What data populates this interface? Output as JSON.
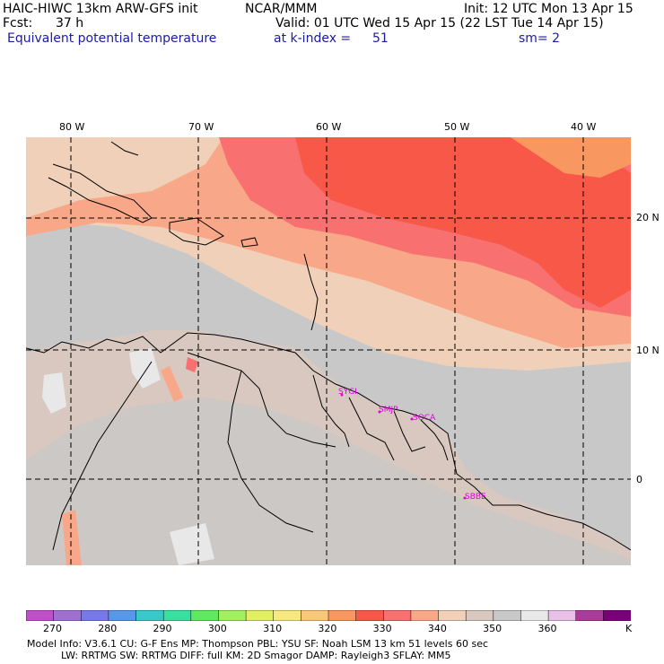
{
  "header": {
    "model": "HAIC-HIWC 13km ARW-GFS init",
    "org": "NCAR/MMM",
    "init": "Init: 12 UTC Mon 13 Apr 15",
    "fcst_label": "Fcst:",
    "fcst_value": "37 h",
    "valid": "Valid: 01 UTC Wed 15 Apr 15 (22 LST Tue 14 Apr 15)",
    "field": "Equivalent potential temperature",
    "level": "at k-index =",
    "level_value": "51",
    "smooth": "sm= 2"
  },
  "map": {
    "longitude_labels": [
      "80 W",
      "70 W",
      "60 W",
      "50 W",
      "40 W"
    ],
    "latitude_labels": [
      "20 N",
      "10 N",
      "0"
    ],
    "cities": [
      "SYGI",
      "SMJP",
      "SOCA",
      "SBBE"
    ]
  },
  "colorbar": {
    "colors": [
      "#c050c8",
      "#a070d0",
      "#7878e8",
      "#5898e8",
      "#38c8c8",
      "#38e0a0",
      "#60e860",
      "#a0f060",
      "#e0f060",
      "#f8e880",
      "#f8c878",
      "#f89860",
      "#f85848",
      "#f87070",
      "#f8a888",
      "#f0d0b8",
      "#d8c8c0",
      "#c8c8c8",
      "#e8e8e8",
      "#e8c0e8",
      "#a83c98",
      "#780078"
    ],
    "labels": [
      "270",
      "280",
      "290",
      "300",
      "310",
      "320",
      "330",
      "340",
      "350",
      "360",
      "K"
    ],
    "label_colors": {
      "warm": "#f85848",
      "neutral": "#c8c8c8",
      "land": "#d8c8c0"
    }
  },
  "footer": {
    "line1": "Model Info: V3.6.1     CU: G-F Ens  MP: Thompson     PBL: YSU        SF: Noah LSM     13 km    51 levels    60 sec",
    "line2": "LW: RRTMG    SW: RRTMG   DIFF: full    KM: 2D Smagor DAMP: Rayleigh3  SFLAY: MM5"
  }
}
